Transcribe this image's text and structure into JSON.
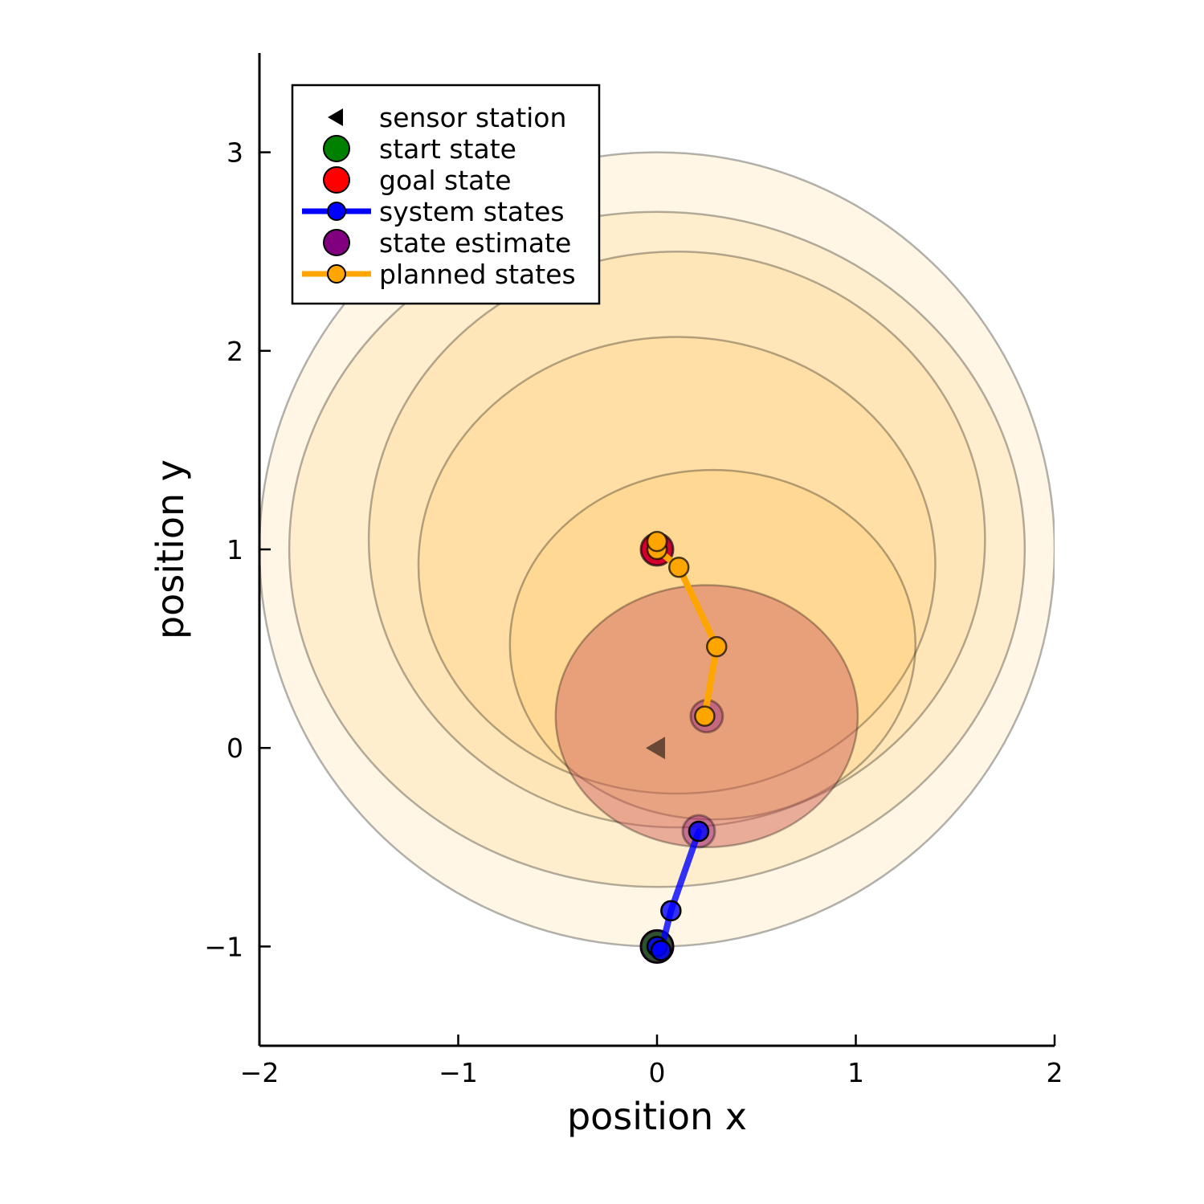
{
  "chart_data": {
    "type": "scatter",
    "xlabel": "position x",
    "ylabel": "position y",
    "xlim": [
      -2,
      2
    ],
    "ylim": [
      -1.5,
      3.5
    ],
    "x_ticks": [
      {
        "value": -2,
        "label": "−2"
      },
      {
        "value": -1,
        "label": "−1"
      },
      {
        "value": 0,
        "label": "0"
      },
      {
        "value": 1,
        "label": "1"
      },
      {
        "value": 2,
        "label": "2"
      }
    ],
    "y_ticks": [
      {
        "value": -1,
        "label": "−1"
      },
      {
        "value": 0,
        "label": "0"
      },
      {
        "value": 1,
        "label": "1"
      },
      {
        "value": 2,
        "label": "2"
      },
      {
        "value": 3,
        "label": "3"
      }
    ],
    "grid": false,
    "legend_position": "top-left",
    "legend": [
      {
        "label": "sensor station",
        "marker": "triangle-left",
        "color": "#000000",
        "line": false
      },
      {
        "label": "start state",
        "marker": "circle",
        "color": "#008000",
        "line": false
      },
      {
        "label": "goal state",
        "marker": "circle",
        "color": "#ff0000",
        "line": false
      },
      {
        "label": "system states",
        "marker": "circle",
        "color": "#0000ff",
        "line": true
      },
      {
        "label": "state estimate",
        "marker": "circle",
        "color": "#800080",
        "line": false
      },
      {
        "label": "planned states",
        "marker": "circle",
        "color": "#ffa500",
        "line": true
      }
    ],
    "uncertainty_ellipses": [
      {
        "center": [
          0.0,
          1.0
        ],
        "radii": [
          2.0,
          2.0
        ],
        "fill": "#ffa500",
        "opacity": 0.1
      },
      {
        "center": [
          0.0,
          1.0
        ],
        "radii": [
          1.85,
          1.7
        ],
        "fill": "#ffa500",
        "opacity": 0.1
      },
      {
        "center": [
          0.1,
          1.05
        ],
        "radii": [
          1.55,
          1.45
        ],
        "fill": "#ffa500",
        "opacity": 0.1
      },
      {
        "center": [
          0.1,
          0.92
        ],
        "radii": [
          1.3,
          1.15
        ],
        "fill": "#ffa500",
        "opacity": 0.1
      },
      {
        "center": [
          0.28,
          0.52
        ],
        "radii": [
          1.02,
          0.88
        ],
        "fill": "#ffa500",
        "opacity": 0.1
      },
      {
        "center": [
          0.25,
          0.16
        ],
        "radii": [
          0.76,
          0.66
        ],
        "fill": "#cd5c5c",
        "opacity": 0.45
      }
    ],
    "sensor_station": {
      "x": 0.0,
      "y": 0.0,
      "color": "#000000"
    },
    "start_state": {
      "x": 0.0,
      "y": -1.0,
      "color": "#008000"
    },
    "goal_state": {
      "x": 0.0,
      "y": 1.0,
      "color": "#ff0000"
    },
    "system_states": {
      "color": "#0000ff",
      "points": [
        [
          0.0,
          -1.0
        ],
        [
          0.02,
          -1.02
        ],
        [
          0.07,
          -0.82
        ],
        [
          0.21,
          -0.42
        ]
      ]
    },
    "state_estimates": {
      "color": "#800080",
      "points": [
        [
          0.0,
          -1.0
        ],
        [
          0.21,
          -0.42
        ],
        [
          0.25,
          0.16
        ],
        [
          0.0,
          1.0
        ]
      ]
    },
    "planned_states": {
      "color": "#ffa500",
      "points": [
        [
          0.24,
          0.16
        ],
        [
          0.3,
          0.51
        ],
        [
          0.11,
          0.91
        ],
        [
          0.0,
          1.0
        ],
        [
          0.0,
          1.04
        ]
      ]
    }
  }
}
